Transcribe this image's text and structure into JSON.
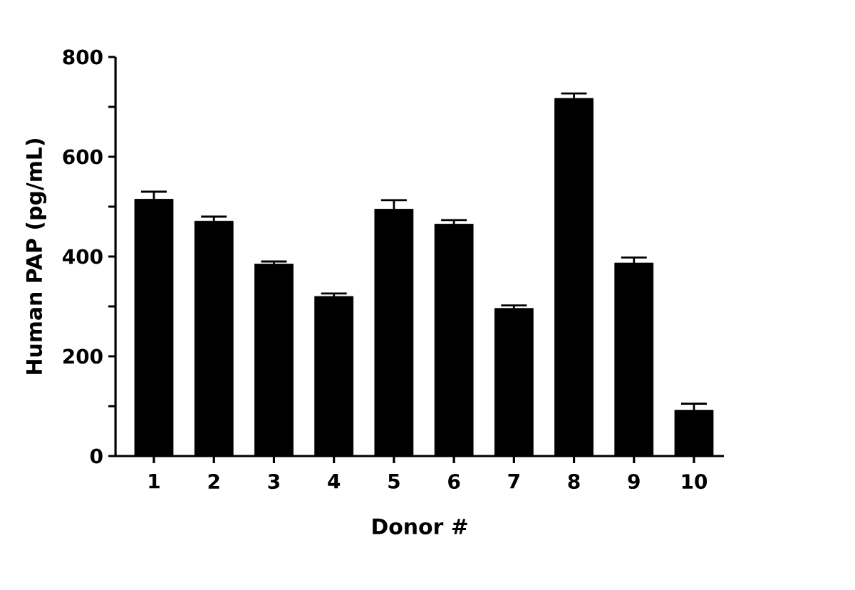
{
  "chart_data": {
    "type": "bar",
    "xlabel": "Donor #",
    "ylabel": "Human PAP (pg/mL)",
    "categories": [
      "1",
      "2",
      "3",
      "4",
      "5",
      "6",
      "7",
      "8",
      "9",
      "10"
    ],
    "values": [
      515,
      471,
      385,
      320,
      495,
      465,
      296,
      717,
      387,
      92
    ],
    "errors": [
      15,
      9,
      5,
      6,
      18,
      8,
      6,
      10,
      11,
      13
    ],
    "color": "#000000",
    "ylim": [
      0,
      800
    ],
    "yticks": [
      0,
      {
        "value": 100,
        "label": null
      },
      200,
      {
        "value": 300,
        "label": null
      },
      400,
      {
        "value": 500,
        "label": null
      },
      600,
      {
        "value": 700,
        "label": null
      },
      800
    ],
    "grid": false
  }
}
